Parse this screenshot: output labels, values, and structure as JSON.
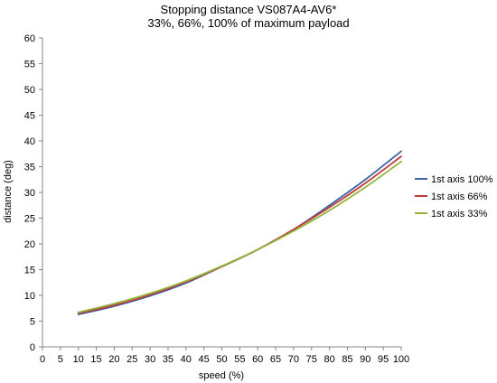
{
  "chart_data": {
    "type": "line",
    "title": "Stopping distance VS087A4-AV6*",
    "subtitle": "33%, 66%, 100% of maximum payload",
    "xlabel": "speed (%)",
    "ylabel": "distance (deg)",
    "xlim": [
      0,
      100
    ],
    "ylim": [
      0,
      60
    ],
    "xticks": [
      0,
      5,
      10,
      15,
      20,
      25,
      30,
      35,
      40,
      45,
      50,
      55,
      60,
      65,
      70,
      75,
      80,
      85,
      90,
      95,
      100
    ],
    "yticks": [
      0,
      5,
      10,
      15,
      20,
      25,
      30,
      35,
      40,
      45,
      50,
      55,
      60
    ],
    "grid": false,
    "legend_position": "right",
    "x": [
      10,
      20,
      30,
      40,
      50,
      60,
      70,
      80,
      90,
      100
    ],
    "series": [
      {
        "name": "1st axis 100%",
        "color": "#3A65A8",
        "values": [
          6.3,
          7.9,
          9.9,
          12.4,
          15.6,
          18.9,
          22.8,
          27.5,
          32.5,
          38.0
        ]
      },
      {
        "name": "1st axis 66%",
        "color": "#BE3A3A",
        "values": [
          6.5,
          8.1,
          10.1,
          12.6,
          15.6,
          18.9,
          22.8,
          27.1,
          31.8,
          37.0
        ]
      },
      {
        "name": "1st axis 33%",
        "color": "#93B53A",
        "values": [
          6.7,
          8.4,
          10.4,
          12.8,
          15.7,
          18.9,
          22.5,
          26.5,
          31.0,
          36.0
        ]
      }
    ]
  }
}
